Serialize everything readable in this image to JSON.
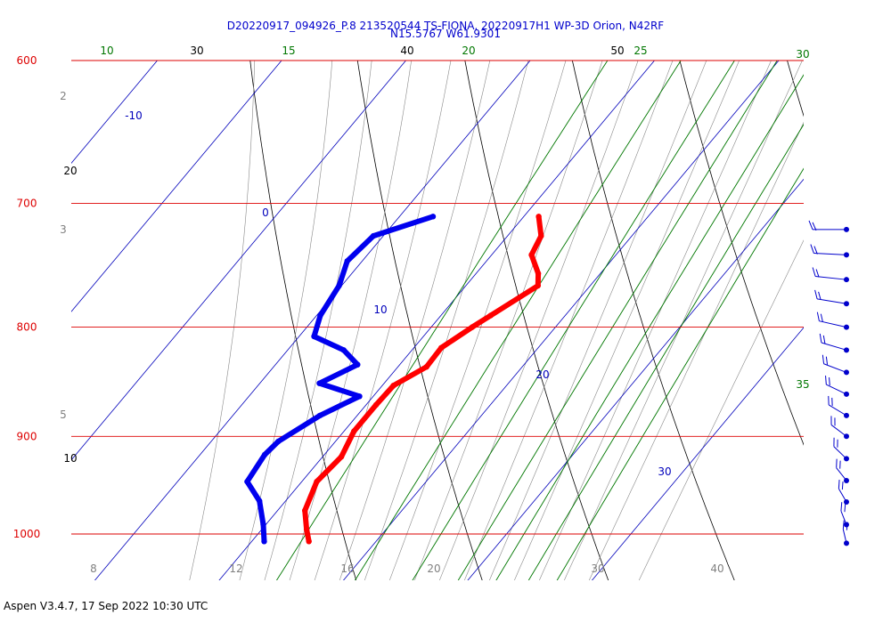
{
  "title_line1": "D20220917_094926_P.8 213520544 TS-FIONA, 20220917H1 WP-3D Orion, N42RF",
  "title_line2": "N15.5767 W61.9301",
  "footer": "Aspen V3.4.7, 17 Sep 2022  10:30 UTC",
  "colors": {
    "isobar": "#dd0000",
    "temperature": "#ff0000",
    "dewpoint": "#0000ee",
    "mixing_ratio": "#007700",
    "isotherm": "#0000bb",
    "adiabat": "#000000",
    "moist_adiabat": "#888888",
    "wind": "#0000cc"
  },
  "chart_data": {
    "type": "skew-t",
    "pressure_levels": [
      {
        "p": 600,
        "label": "600"
      },
      {
        "p": 700,
        "label": "700"
      },
      {
        "p": 800,
        "label": "800"
      },
      {
        "p": 900,
        "label": "900"
      },
      {
        "p": 1000,
        "label": "1000"
      }
    ],
    "isotherm_labels": [
      "-10",
      "0",
      "10",
      "20",
      "30"
    ],
    "mixing_ratio_labels": [
      "10",
      "15",
      "20",
      "25",
      "30",
      "35"
    ],
    "dry_adiabat_labels": [
      "30",
      "40",
      "50",
      "20",
      "10"
    ],
    "moist_adiabat_labels": [
      "2",
      "3",
      "5"
    ],
    "bottom_axis_labels": [
      "8",
      "12",
      "16",
      "20",
      "30",
      "40"
    ],
    "temperature_profile": [
      {
        "p": 710,
        "t": 11.2
      },
      {
        "p": 725,
        "t": 12.7
      },
      {
        "p": 740,
        "t": 13.2
      },
      {
        "p": 755,
        "t": 15.0
      },
      {
        "p": 765,
        "t": 15.8
      },
      {
        "p": 790,
        "t": 14.0
      },
      {
        "p": 800,
        "t": 13.3
      },
      {
        "p": 818,
        "t": 12.2
      },
      {
        "p": 835,
        "t": 12.3
      },
      {
        "p": 852,
        "t": 10.9
      },
      {
        "p": 870,
        "t": 10.8
      },
      {
        "p": 895,
        "t": 10.8
      },
      {
        "p": 920,
        "t": 11.5
      },
      {
        "p": 945,
        "t": 11.2
      },
      {
        "p": 975,
        "t": 12.2
      },
      {
        "p": 995,
        "t": 13.6
      },
      {
        "p": 1008,
        "t": 14.6
      }
    ],
    "dewpoint_profile": [
      {
        "p": 710,
        "td": 2.7
      },
      {
        "p": 725,
        "td": -0.8
      },
      {
        "p": 745,
        "td": -1.2
      },
      {
        "p": 765,
        "td": -0.2
      },
      {
        "p": 790,
        "td": 0.3
      },
      {
        "p": 808,
        "td": 1.2
      },
      {
        "p": 820,
        "td": 4.5
      },
      {
        "p": 833,
        "td": 6.6
      },
      {
        "p": 850,
        "td": 4.8
      },
      {
        "p": 862,
        "td": 8.9
      },
      {
        "p": 880,
        "td": 7.0
      },
      {
        "p": 905,
        "td": 5.4
      },
      {
        "p": 918,
        "td": 5.2
      },
      {
        "p": 945,
        "td": 5.6
      },
      {
        "p": 965,
        "td": 7.9
      },
      {
        "p": 990,
        "td": 9.8
      },
      {
        "p": 1008,
        "td": 11.0
      }
    ],
    "wind_barbs": [
      {
        "p": 720
      },
      {
        "p": 740
      },
      {
        "p": 760
      },
      {
        "p": 780
      },
      {
        "p": 800
      },
      {
        "p": 820
      },
      {
        "p": 840
      },
      {
        "p": 860
      },
      {
        "p": 880
      },
      {
        "p": 900
      },
      {
        "p": 922
      },
      {
        "p": 944
      },
      {
        "p": 966
      },
      {
        "p": 990
      },
      {
        "p": 1010
      }
    ]
  }
}
